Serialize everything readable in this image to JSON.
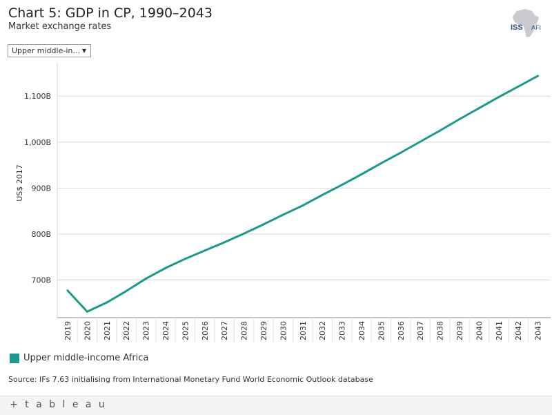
{
  "header": {
    "title": "Chart 5: GDP in CP, 1990–2043",
    "subtitle": "Market exchange rates"
  },
  "logo": {
    "text_left": "ISS",
    "text_right": "AFI"
  },
  "filter": {
    "selected": "Upper middle-in…"
  },
  "legend": {
    "label": "Upper middle-income Africa",
    "color": "#1a9a8a"
  },
  "source": "Source: IFs 7.63 initialising from International Monetary Fund World Economic Outlook database",
  "footer": {
    "brand": "+ t a b l e a u"
  },
  "chart_data": {
    "type": "line",
    "title": "Chart 5: GDP in CP, 1990–2043",
    "subtitle": "Market exchange rates",
    "xlabel": "",
    "ylabel": "US$ 2017",
    "ylim": [
      618,
      1174
    ],
    "yticks": [
      700,
      800,
      900,
      1000,
      1100
    ],
    "ytick_labels": [
      "700B",
      "800B",
      "900B",
      "1,000B",
      "1,100B"
    ],
    "grid": true,
    "legend_position": "bottom-left",
    "categories": [
      "2019",
      "2020",
      "2021",
      "2022",
      "2023",
      "2024",
      "2025",
      "2026",
      "2027",
      "2028",
      "2029",
      "2030",
      "2031",
      "2032",
      "2033",
      "2034",
      "2035",
      "2036",
      "2037",
      "2038",
      "2039",
      "2040",
      "2041",
      "2042",
      "2043"
    ],
    "series": [
      {
        "name": "Upper middle-income Africa",
        "color": "#1a9a8a",
        "values": [
          677,
          631,
          651,
          676,
          703,
          726,
          746,
          764,
          782,
          801,
          821,
          842,
          862,
          885,
          907,
          930,
          954,
          977,
          1001,
          1025,
          1050,
          1074,
          1098,
          1121,
          1144
        ]
      }
    ]
  }
}
